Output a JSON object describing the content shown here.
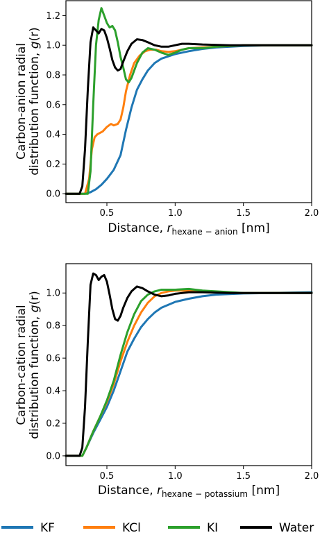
{
  "colors": {
    "KF": "#1f77b4",
    "KCl": "#ff7f0e",
    "KI": "#2ca02c",
    "Water": "#000000"
  },
  "legend": {
    "items": [
      {
        "name": "KF",
        "color": "#1f77b4"
      },
      {
        "name": "KCl",
        "color": "#ff7f0e"
      },
      {
        "name": "KI",
        "color": "#2ca02c"
      },
      {
        "name": "Water",
        "color": "#000000"
      }
    ]
  },
  "chart_data": [
    {
      "type": "line",
      "ylabel_line1": "Carbon-anion radial",
      "ylabel_line2_prefix": "distribution function, ",
      "ylabel_symbol": "g",
      "ylabel_paren": "(r)",
      "xlabel_prefix": "Distance, ",
      "xlabel_symbol": "r",
      "xlabel_subscript": "hexane − anion",
      "xlabel_unit": " [nm]",
      "xlim": [
        0.2,
        2.0
      ],
      "ylim": [
        -0.06,
        1.3
      ],
      "xticks": [
        "0.5",
        "1.0",
        "1.5",
        "2.0"
      ],
      "xtick_values": [
        0.5,
        1.0,
        1.5,
        2.0
      ],
      "yticks": [
        "0.0",
        "0.2",
        "0.4",
        "0.6",
        "0.8",
        "1.0",
        "1.2"
      ],
      "ytick_values": [
        0.0,
        0.2,
        0.4,
        0.6,
        0.8,
        1.0,
        1.2
      ],
      "grid": false,
      "series": [
        {
          "name": "KF",
          "x": [
            0.2,
            0.34,
            0.38,
            0.42,
            0.46,
            0.5,
            0.55,
            0.6,
            0.64,
            0.68,
            0.72,
            0.76,
            0.8,
            0.85,
            0.9,
            1.0,
            1.1,
            1.2,
            1.3,
            1.5,
            1.7,
            2.0
          ],
          "y": [
            0.0,
            0.0,
            0.01,
            0.03,
            0.06,
            0.1,
            0.16,
            0.26,
            0.43,
            0.58,
            0.7,
            0.77,
            0.83,
            0.88,
            0.91,
            0.94,
            0.96,
            0.975,
            0.985,
            0.995,
            1.0,
            1.0
          ]
        },
        {
          "name": "KCl",
          "x": [
            0.2,
            0.34,
            0.37,
            0.39,
            0.41,
            0.43,
            0.45,
            0.47,
            0.5,
            0.53,
            0.55,
            0.58,
            0.6,
            0.62,
            0.64,
            0.67,
            0.7,
            0.74,
            0.78,
            0.82,
            0.86,
            0.9,
            0.95,
            1.0,
            1.1,
            1.3,
            1.5,
            2.0
          ],
          "y": [
            0.0,
            0.0,
            0.1,
            0.3,
            0.38,
            0.4,
            0.41,
            0.42,
            0.45,
            0.47,
            0.46,
            0.47,
            0.5,
            0.58,
            0.69,
            0.8,
            0.88,
            0.93,
            0.96,
            0.97,
            0.97,
            0.96,
            0.955,
            0.96,
            0.98,
            0.99,
            1.0,
            1.0
          ]
        },
        {
          "name": "KI",
          "x": [
            0.2,
            0.36,
            0.38,
            0.4,
            0.42,
            0.44,
            0.46,
            0.48,
            0.5,
            0.52,
            0.54,
            0.56,
            0.58,
            0.6,
            0.62,
            0.64,
            0.66,
            0.68,
            0.72,
            0.76,
            0.8,
            0.85,
            0.9,
            0.95,
            1.0,
            1.05,
            1.1,
            1.2,
            1.3,
            1.5,
            2.0
          ],
          "y": [
            0.0,
            0.0,
            0.15,
            0.6,
            1.0,
            1.17,
            1.25,
            1.2,
            1.15,
            1.12,
            1.13,
            1.1,
            1.02,
            0.92,
            0.85,
            0.77,
            0.75,
            0.78,
            0.88,
            0.95,
            0.98,
            0.97,
            0.95,
            0.935,
            0.95,
            0.97,
            0.98,
            0.98,
            0.99,
            1.0,
            1.0
          ]
        },
        {
          "name": "Water",
          "x": [
            0.2,
            0.3,
            0.32,
            0.34,
            0.36,
            0.38,
            0.4,
            0.42,
            0.44,
            0.46,
            0.48,
            0.5,
            0.52,
            0.54,
            0.56,
            0.58,
            0.6,
            0.62,
            0.65,
            0.68,
            0.72,
            0.76,
            0.8,
            0.85,
            0.9,
            0.95,
            1.0,
            1.05,
            1.1,
            1.2,
            1.4,
            2.0
          ],
          "y": [
            0.0,
            0.0,
            0.05,
            0.3,
            0.7,
            1.02,
            1.12,
            1.1,
            1.08,
            1.11,
            1.1,
            1.05,
            0.98,
            0.9,
            0.85,
            0.83,
            0.84,
            0.89,
            0.96,
            1.01,
            1.04,
            1.035,
            1.02,
            1.0,
            0.99,
            0.99,
            1.0,
            1.01,
            1.01,
            1.005,
            1.0,
            1.0
          ]
        }
      ]
    },
    {
      "type": "line",
      "ylabel_line1": "Carbon-cation radial",
      "ylabel_line2_prefix": "distribution function, ",
      "ylabel_symbol": "g",
      "ylabel_paren": "(r)",
      "xlabel_prefix": "Distance, ",
      "xlabel_symbol": "r",
      "xlabel_subscript": "hexane − potassium",
      "xlabel_unit": " [nm]",
      "xlim": [
        0.2,
        2.0
      ],
      "ylim": [
        -0.06,
        1.18
      ],
      "xticks": [
        "0.5",
        "1.0",
        "1.5",
        "2.0"
      ],
      "xtick_values": [
        0.5,
        1.0,
        1.5,
        2.0
      ],
      "yticks": [
        "0.0",
        "0.2",
        "0.4",
        "0.6",
        "0.8",
        "1.0"
      ],
      "ytick_values": [
        0.0,
        0.2,
        0.4,
        0.6,
        0.8,
        1.0
      ],
      "grid": false,
      "series": [
        {
          "name": "KF",
          "x": [
            0.2,
            0.32,
            0.35,
            0.4,
            0.45,
            0.5,
            0.55,
            0.6,
            0.65,
            0.7,
            0.75,
            0.8,
            0.85,
            0.9,
            1.0,
            1.1,
            1.2,
            1.3,
            1.5,
            1.7,
            2.0
          ],
          "y": [
            0.0,
            0.0,
            0.05,
            0.14,
            0.22,
            0.3,
            0.4,
            0.52,
            0.64,
            0.72,
            0.79,
            0.84,
            0.88,
            0.91,
            0.945,
            0.965,
            0.98,
            0.99,
            0.997,
            1.0,
            1.005
          ]
        },
        {
          "name": "KCl",
          "x": [
            0.2,
            0.32,
            0.35,
            0.4,
            0.45,
            0.5,
            0.55,
            0.6,
            0.65,
            0.7,
            0.75,
            0.8,
            0.85,
            0.9,
            0.95,
            1.0,
            1.1,
            1.3,
            1.5,
            2.0
          ],
          "y": [
            0.0,
            0.0,
            0.05,
            0.15,
            0.24,
            0.33,
            0.44,
            0.58,
            0.7,
            0.8,
            0.88,
            0.94,
            0.98,
            1.0,
            1.01,
            1.015,
            1.015,
            1.005,
            1.0,
            1.0
          ]
        },
        {
          "name": "KI",
          "x": [
            0.2,
            0.32,
            0.35,
            0.4,
            0.45,
            0.5,
            0.55,
            0.6,
            0.65,
            0.7,
            0.75,
            0.8,
            0.85,
            0.9,
            0.95,
            1.0,
            1.1,
            1.2,
            1.3,
            1.5,
            2.0
          ],
          "y": [
            0.0,
            0.0,
            0.05,
            0.15,
            0.24,
            0.34,
            0.46,
            0.62,
            0.76,
            0.87,
            0.95,
            0.99,
            1.01,
            1.02,
            1.02,
            1.02,
            1.025,
            1.015,
            1.01,
            1.0,
            1.0
          ]
        },
        {
          "name": "Water",
          "x": [
            0.2,
            0.3,
            0.32,
            0.34,
            0.36,
            0.38,
            0.4,
            0.42,
            0.44,
            0.46,
            0.48,
            0.5,
            0.52,
            0.54,
            0.56,
            0.58,
            0.6,
            0.62,
            0.65,
            0.68,
            0.72,
            0.76,
            0.8,
            0.85,
            0.9,
            0.95,
            1.0,
            1.1,
            1.2,
            1.4,
            2.0
          ],
          "y": [
            0.0,
            0.0,
            0.05,
            0.3,
            0.7,
            1.05,
            1.12,
            1.11,
            1.08,
            1.1,
            1.11,
            1.07,
            0.99,
            0.9,
            0.84,
            0.83,
            0.86,
            0.91,
            0.97,
            1.01,
            1.04,
            1.03,
            1.01,
            0.99,
            0.98,
            0.985,
            0.995,
            1.005,
            1.005,
            1.0,
            1.0
          ]
        }
      ]
    }
  ]
}
